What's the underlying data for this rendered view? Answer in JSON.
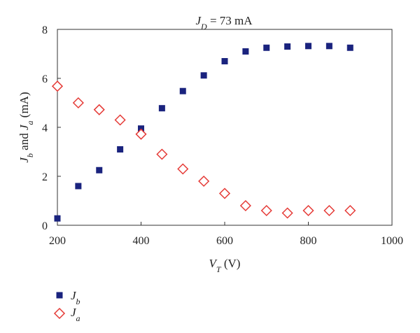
{
  "chart_data": {
    "type": "scatter",
    "title": "J_D = 73 mA",
    "title_parts": {
      "symbol": "J",
      "subscript": "D",
      "rest": " = 73 mA"
    },
    "xlabel": "V_T (V)",
    "xlabel_parts": {
      "symbol": "V",
      "subscript": "T",
      "rest": " (V)"
    },
    "ylabel": "J_b and J_a (mA)",
    "ylabel_parts": {
      "sym1": "J",
      "sub1": "b",
      "mid": " and ",
      "sym2": "J",
      "sub2": "a",
      "rest": " (mA)"
    },
    "xlim": [
      200,
      1000
    ],
    "ylim": [
      0,
      8
    ],
    "xticks": [
      200,
      400,
      600,
      800,
      1000
    ],
    "yticks": [
      0,
      2,
      4,
      6,
      8
    ],
    "grid": false,
    "legend_position": "bottom-left",
    "series": [
      {
        "name": "J_b",
        "legend_symbol": "J",
        "legend_subscript": "b",
        "marker": "filled-square",
        "color": "#1a237e",
        "x": [
          200,
          250,
          300,
          350,
          400,
          450,
          500,
          550,
          600,
          650,
          700,
          750,
          800,
          850,
          900
        ],
        "y": [
          0.28,
          1.6,
          2.25,
          3.1,
          3.95,
          4.78,
          5.48,
          6.12,
          6.7,
          7.1,
          7.25,
          7.3,
          7.32,
          7.32,
          7.25
        ]
      },
      {
        "name": "J_a",
        "legend_symbol": "J",
        "legend_subscript": "a",
        "marker": "open-diamond",
        "color": "#e53935",
        "x": [
          200,
          250,
          300,
          350,
          400,
          450,
          500,
          550,
          600,
          650,
          700,
          750,
          800,
          850,
          900
        ],
        "y": [
          5.68,
          5.0,
          4.72,
          4.3,
          3.72,
          2.9,
          2.3,
          1.8,
          1.3,
          0.8,
          0.6,
          0.5,
          0.6,
          0.6,
          0.6
        ]
      }
    ]
  }
}
